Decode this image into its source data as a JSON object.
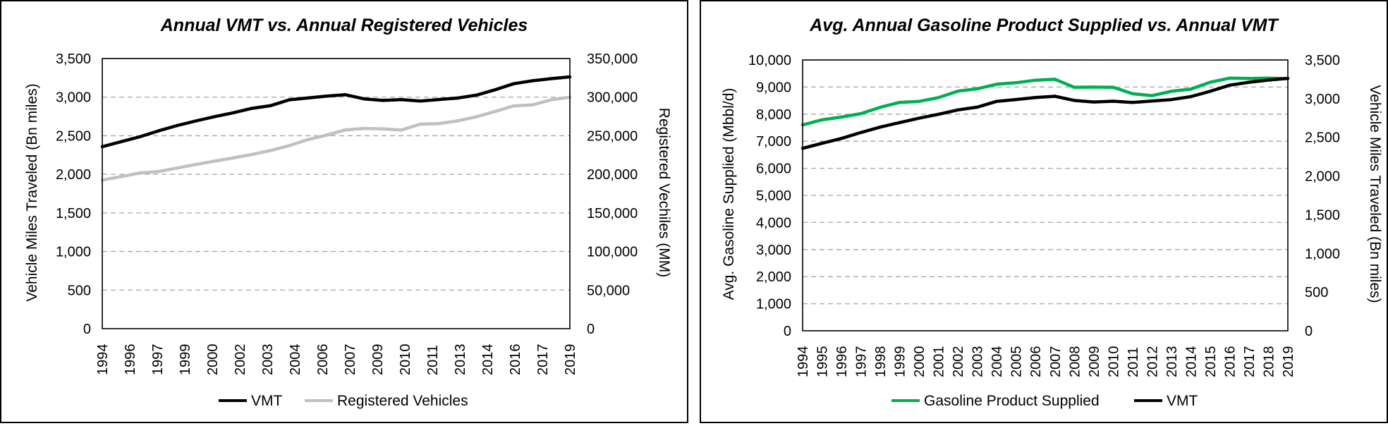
{
  "chart_data": [
    {
      "type": "line",
      "title": "Annual VMT vs. Annual Registered Vehicles",
      "ylabel": "Vehicle Miles Traveled (Bn miles)",
      "y2label": "Registered Vechiles (MM)",
      "x": [
        1994,
        1995,
        1996,
        1997,
        1998,
        1999,
        2000,
        2001,
        2002,
        2003,
        2004,
        2005,
        2006,
        2007,
        2008,
        2009,
        2010,
        2011,
        2012,
        2013,
        2014,
        2015,
        2016,
        2017,
        2018,
        2019
      ],
      "x_tick_labels": [
        "1994",
        "1996",
        "1997",
        "1999",
        "2000",
        "2002",
        "2003",
        "2004",
        "2006",
        "2007",
        "2009",
        "2010",
        "2011",
        "2013",
        "2014",
        "2016",
        "2017",
        "2019"
      ],
      "ylim": [
        0,
        3500
      ],
      "y_tick_labels": [
        "0",
        "500",
        "1,000",
        "1,500",
        "2,000",
        "2,500",
        "3,000",
        "3,500"
      ],
      "y2lim": [
        0,
        350000
      ],
      "y2_tick_labels": [
        "0",
        "50,000",
        "100,000",
        "150,000",
        "200,000",
        "250,000",
        "300,000",
        "350,000"
      ],
      "grid": true,
      "legend_position": "bottom",
      "series": [
        {
          "name": "VMT",
          "axis": "left",
          "color": "#000000",
          "values": [
            2358,
            2423,
            2486,
            2562,
            2632,
            2691,
            2747,
            2797,
            2855,
            2890,
            2965,
            2989,
            3014,
            3031,
            2977,
            2957,
            2967,
            2950,
            2969,
            2988,
            3026,
            3095,
            3174,
            3212,
            3240,
            3262
          ]
        },
        {
          "name": "Registered Vehicles",
          "axis": "right",
          "color": "#c0c0c0",
          "values": [
            192500,
            197000,
            201700,
            203600,
            208100,
            212700,
            217000,
            221200,
            225700,
            230800,
            237200,
            245000,
            250800,
            257500,
            259400,
            258900,
            257300,
            265000,
            265700,
            269300,
            274500,
            281400,
            288700,
            290000,
            296500,
            299900
          ]
        }
      ]
    },
    {
      "type": "line",
      "title": "Avg. Annual Gasoline Product Supplied vs. Annual VMT",
      "ylabel": "Avg. Gasoline Supplied (Mbbl/d)",
      "y2label": "Vehicle Miles Traveled (Bn miles)",
      "x": [
        1994,
        1995,
        1996,
        1997,
        1998,
        1999,
        2000,
        2001,
        2002,
        2003,
        2004,
        2005,
        2006,
        2007,
        2008,
        2009,
        2010,
        2011,
        2012,
        2013,
        2014,
        2015,
        2016,
        2017,
        2018,
        2019
      ],
      "x_tick_labels": [
        "1994",
        "1995",
        "1996",
        "1997",
        "1998",
        "1999",
        "2000",
        "2001",
        "2002",
        "2003",
        "2004",
        "2005",
        "2006",
        "2007",
        "2008",
        "2009",
        "2010",
        "2011",
        "2012",
        "2013",
        "2014",
        "2015",
        "2016",
        "2017",
        "2018",
        "2019"
      ],
      "ylim": [
        0,
        10000
      ],
      "y_tick_labels": [
        "0",
        "1,000",
        "2,000",
        "3,000",
        "4,000",
        "5,000",
        "6,000",
        "7,000",
        "8,000",
        "9,000",
        "10,000"
      ],
      "y2lim": [
        0,
        3500
      ],
      "y2_tick_labels": [
        "0",
        "500",
        "1,000",
        "1,500",
        "2,000",
        "2,500",
        "3,000",
        "3,500"
      ],
      "grid": true,
      "legend_position": "bottom",
      "series": [
        {
          "name": "Gasoline Product Supplied",
          "axis": "left",
          "color": "#00b050",
          "values": [
            7601,
            7789,
            7891,
            8017,
            8253,
            8431,
            8472,
            8610,
            8848,
            8935,
            9105,
            9159,
            9253,
            9286,
            8989,
            8997,
            8993,
            8753,
            8682,
            8843,
            8921,
            9178,
            9327,
            9318,
            9329,
            9309
          ]
        },
        {
          "name": "VMT",
          "axis": "right",
          "color": "#000000",
          "values": [
            2358,
            2423,
            2486,
            2562,
            2632,
            2691,
            2747,
            2797,
            2855,
            2890,
            2965,
            2989,
            3014,
            3031,
            2977,
            2957,
            2967,
            2950,
            2969,
            2988,
            3026,
            3095,
            3174,
            3212,
            3240,
            3262
          ]
        }
      ]
    }
  ]
}
